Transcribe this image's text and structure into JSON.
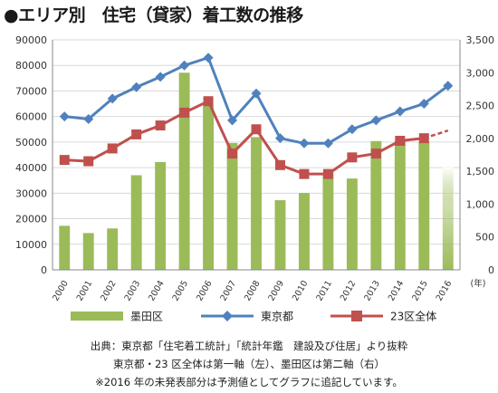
{
  "title": "●エリア別　住宅（貸家）着工数の推移",
  "notes": [
    "出典：東京都「住宅着工統計」「統計年鑑　建設及び住居」より抜粋",
    "東京都・23 区全体は第一軸（左）、墨田区は第二軸（右）",
    "※2016 年の未発表部分は予測値としてグラフに追記しています。"
  ],
  "colors": {
    "bar": "#9bbb59",
    "tokyo": "#4f81bd",
    "ward23": "#c0504d",
    "grid": "#d9d9d9",
    "axis": "#888888"
  },
  "chart_data": {
    "type": "bar+line",
    "categories": [
      "2000",
      "2001",
      "2002",
      "2003",
      "2004",
      "2005",
      "2006",
      "2007",
      "2008",
      "2009",
      "2010",
      "2011",
      "2012",
      "2013",
      "2014",
      "2015",
      "2016"
    ],
    "x_unit": "(年)",
    "y_left": {
      "ylim": [
        0,
        90000
      ],
      "ticks": [
        "0",
        "10000",
        "20000",
        "30000",
        "40000",
        "50000",
        "60000",
        "70000",
        "80000",
        "90000"
      ]
    },
    "y_right": {
      "ylim": [
        0,
        3500
      ],
      "ticks": [
        "0",
        "500",
        "1,000",
        "1,500",
        "2,000",
        "2,500",
        "3,000",
        "3,500"
      ]
    },
    "series": [
      {
        "name": "墨田区",
        "kind": "bar",
        "axis": "right",
        "values": [
          670,
          560,
          630,
          1440,
          1640,
          3000,
          2500,
          1930,
          2020,
          1060,
          1170,
          1480,
          1390,
          1960,
          1960,
          1950,
          1560
        ]
      },
      {
        "name": "東京都",
        "kind": "line",
        "axis": "left",
        "marker": "diamond",
        "values": [
          60000,
          59000,
          67000,
          71500,
          75500,
          80000,
          83000,
          58500,
          69000,
          51500,
          49500,
          49500,
          55000,
          58500,
          62000,
          65000,
          72000
        ]
      },
      {
        "name": "23区全体",
        "kind": "line",
        "axis": "left",
        "marker": "square",
        "values": [
          43000,
          42500,
          47500,
          53000,
          56500,
          61500,
          66000,
          45500,
          55000,
          41000,
          37500,
          37500,
          44000,
          45500,
          50500,
          51500,
          54500
        ],
        "forecast_from_index": 15
      }
    ],
    "legend": {
      "position": "bottom"
    }
  }
}
